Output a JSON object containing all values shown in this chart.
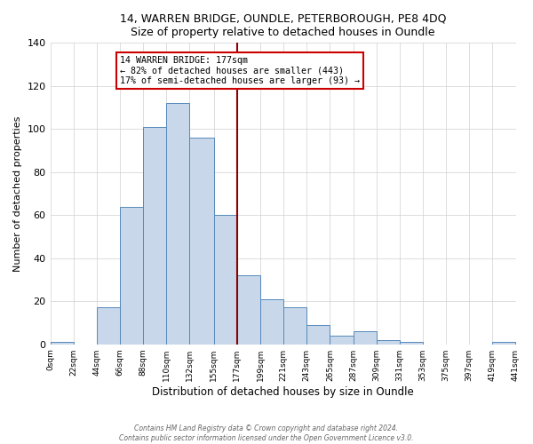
{
  "title": "14, WARREN BRIDGE, OUNDLE, PETERBOROUGH, PE8 4DQ",
  "subtitle": "Size of property relative to detached houses in Oundle",
  "xlabel": "Distribution of detached houses by size in Oundle",
  "ylabel": "Number of detached properties",
  "bin_edges": [
    0,
    22,
    44,
    66,
    88,
    110,
    132,
    155,
    177,
    199,
    221,
    243,
    265,
    287,
    309,
    331,
    353,
    375,
    397,
    419,
    441
  ],
  "bar_heights": [
    1,
    0,
    17,
    64,
    101,
    112,
    96,
    60,
    32,
    21,
    17,
    9,
    4,
    6,
    2,
    1,
    0,
    0,
    0,
    1
  ],
  "bar_color": "#c8d8ea",
  "bar_edge_color": "#5588bb",
  "reference_line_x": 177,
  "annotation_title": "14 WARREN BRIDGE: 177sqm",
  "annotation_line1": "← 82% of detached houses are smaller (443)",
  "annotation_line2": "17% of semi-detached houses are larger (93) →",
  "annotation_box_color": "#ffffff",
  "annotation_box_edge_color": "#cc0000",
  "reference_line_color": "#8b0000",
  "footer_line1": "Contains HM Land Registry data © Crown copyright and database right 2024.",
  "footer_line2": "Contains public sector information licensed under the Open Government Licence v3.0.",
  "ylim": [
    0,
    140
  ],
  "yticks": [
    0,
    20,
    40,
    60,
    80,
    100,
    120,
    140
  ],
  "tick_labels": [
    "0sqm",
    "22sqm",
    "44sqm",
    "66sqm",
    "88sqm",
    "110sqm",
    "132sqm",
    "155sqm",
    "177sqm",
    "199sqm",
    "221sqm",
    "243sqm",
    "265sqm",
    "287sqm",
    "309sqm",
    "331sqm",
    "353sqm",
    "375sqm",
    "397sqm",
    "419sqm",
    "441sqm"
  ]
}
